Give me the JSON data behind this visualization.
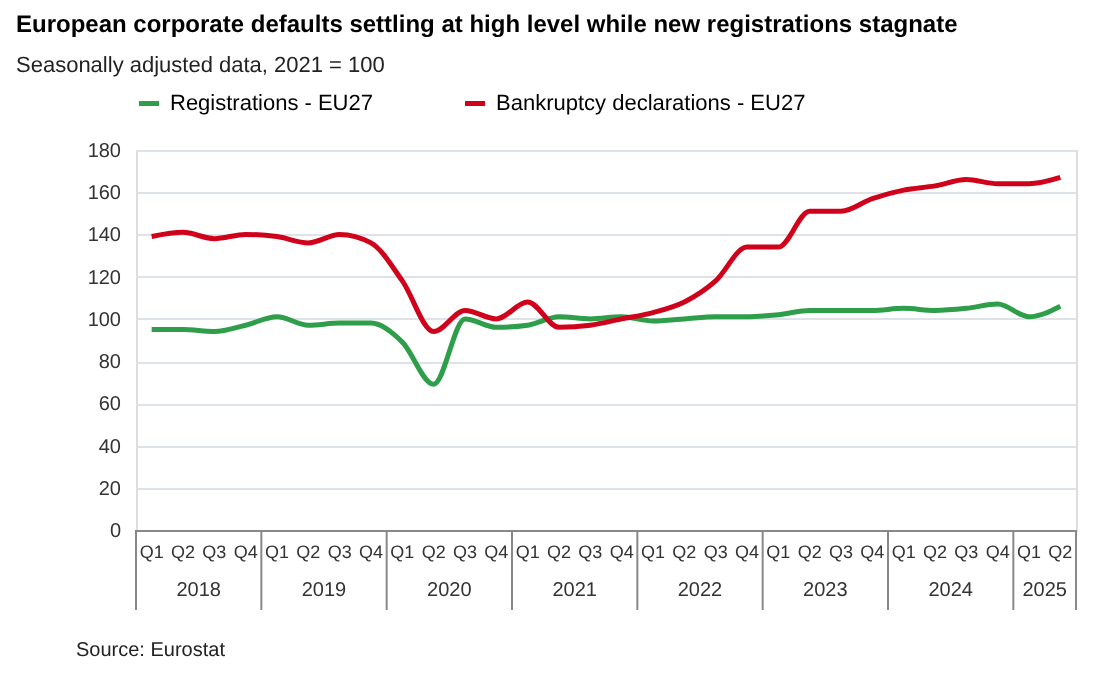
{
  "chart_data": {
    "type": "line",
    "title": "European corporate defaults settling at high level while new registrations stagnate",
    "subtitle": "Seasonally adjusted data, 2021 = 100",
    "categories": [
      "Q1",
      "Q2",
      "Q3",
      "Q4",
      "Q1",
      "Q2",
      "Q3",
      "Q4",
      "Q1",
      "Q2",
      "Q3",
      "Q4",
      "Q1",
      "Q2",
      "Q3",
      "Q4",
      "Q1",
      "Q2",
      "Q3",
      "Q4",
      "Q1",
      "Q2",
      "Q3",
      "Q4",
      "Q1",
      "Q2",
      "Q3",
      "Q4",
      "Q1",
      "Q2"
    ],
    "series": [
      {
        "name": "Registrations - EU27",
        "color": "#2e9e4a",
        "values": [
          95,
          95,
          94,
          97,
          101,
          97,
          98,
          98,
          89,
          69,
          100,
          96,
          97,
          101,
          100,
          101,
          99,
          100,
          101,
          101,
          102,
          104,
          104,
          104,
          105,
          104,
          105,
          107,
          101,
          106
        ]
      },
      {
        "name": "Bankruptcy declarations - EU27",
        "color": "#d0021b",
        "values": [
          139,
          141,
          138,
          140,
          139,
          136,
          140,
          136,
          118,
          94,
          104,
          100,
          108,
          96,
          97,
          100,
          103,
          108,
          118,
          134,
          134,
          151,
          151,
          157,
          161,
          163,
          166,
          164,
          164,
          167
        ]
      }
    ],
    "ylim": [
      0,
      180
    ],
    "yticks": [
      0,
      20,
      40,
      60,
      80,
      100,
      120,
      140,
      160,
      180
    ],
    "grid": "y",
    "legend": "top",
    "marker": "none",
    "line_style": "solid",
    "annotations": [
      "2018",
      "2019",
      "2020",
      "2021",
      "2022",
      "2023",
      "2024",
      "2025",
      "Source: Eurostat"
    ]
  }
}
